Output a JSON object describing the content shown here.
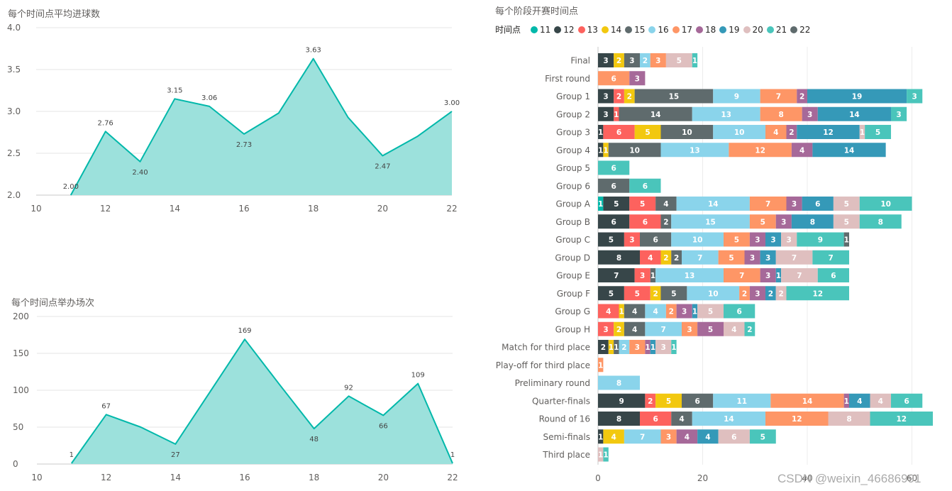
{
  "watermark": "CSDN @weixin_46686991",
  "chart_data": [
    {
      "id": "goals",
      "type": "area",
      "title": "每个时间点平均进球数",
      "x": [
        11,
        12,
        13,
        14,
        15,
        16,
        17,
        18,
        19,
        20,
        21,
        22
      ],
      "values": [
        2.0,
        2.76,
        2.4,
        3.15,
        3.06,
        2.73,
        2.98,
        3.63,
        2.93,
        2.47,
        2.7,
        3.0
      ],
      "data_labels": [
        {
          "x": 11,
          "text": "2.00"
        },
        {
          "x": 12,
          "text": "2.76"
        },
        {
          "x": 13,
          "text": "2.40"
        },
        {
          "x": 14,
          "text": "3.15"
        },
        {
          "x": 15,
          "text": "3.06"
        },
        {
          "x": 16,
          "text": "2.73"
        },
        {
          "x": 18,
          "text": "3.63"
        },
        {
          "x": 20,
          "text": "2.47"
        },
        {
          "x": 22,
          "text": "3.00"
        }
      ],
      "xticks": [
        "10",
        "12",
        "14",
        "16",
        "18",
        "20",
        "22"
      ],
      "yticks": [
        "2.0",
        "2.5",
        "3.0",
        "3.5",
        "4.0"
      ],
      "xlim": [
        10,
        22
      ],
      "ylim": [
        2.0,
        4.0
      ],
      "color": "#01B8AA",
      "fill": "#9CE1DC"
    },
    {
      "id": "matches",
      "type": "area",
      "title": "每个时间点举办场次",
      "x": [
        11,
        12,
        13,
        14,
        15,
        16,
        17,
        18,
        19,
        20,
        21,
        22
      ],
      "values": [
        1,
        67,
        50,
        27,
        98,
        169,
        108,
        48,
        92,
        66,
        109,
        1
      ],
      "data_labels": [
        {
          "x": 11,
          "text": "1"
        },
        {
          "x": 12,
          "text": "67"
        },
        {
          "x": 14,
          "text": "27"
        },
        {
          "x": 16,
          "text": "169"
        },
        {
          "x": 18,
          "text": "48"
        },
        {
          "x": 19,
          "text": "92"
        },
        {
          "x": 20,
          "text": "66"
        },
        {
          "x": 21,
          "text": "109"
        },
        {
          "x": 22,
          "text": "1"
        }
      ],
      "xticks": [
        "10",
        "12",
        "14",
        "16",
        "18",
        "20",
        "22"
      ],
      "yticks": [
        "0",
        "50",
        "100",
        "150",
        "200"
      ],
      "xlim": [
        10,
        22
      ],
      "ylim": [
        0,
        200
      ],
      "color": "#01B8AA",
      "fill": "#9CE1DC"
    },
    {
      "id": "stages",
      "type": "bar",
      "orientation": "horizontal",
      "stacked": true,
      "title": "每个阶段开赛时间点",
      "legend_title": "时间点",
      "legend": [
        {
          "name": "11",
          "color": "#01B8AA"
        },
        {
          "name": "12",
          "color": "#374649"
        },
        {
          "name": "13",
          "color": "#FD625E"
        },
        {
          "name": "14",
          "color": "#F2C80F"
        },
        {
          "name": "15",
          "color": "#5F6B6D"
        },
        {
          "name": "16",
          "color": "#8AD4EB"
        },
        {
          "name": "17",
          "color": "#FE9666"
        },
        {
          "name": "18",
          "color": "#A66999"
        },
        {
          "name": "19",
          "color": "#3599B8"
        },
        {
          "name": "20",
          "color": "#DFBFBF"
        },
        {
          "name": "21",
          "color": "#4AC5BB"
        },
        {
          "name": "22",
          "color": "#5F6B6D"
        }
      ],
      "categories": [
        "Final",
        "First round",
        "Group 1",
        "Group 2",
        "Group 3",
        "Group 4",
        "Group 5",
        "Group 6",
        "Group A",
        "Group B",
        "Group C",
        "Group D",
        "Group E",
        "Group F",
        "Group G",
        "Group H",
        "Match for third place",
        "Play-off for third place",
        "Preliminary round",
        "Quarter-finals",
        "Round of 16",
        "Semi-finals",
        "Third place"
      ],
      "series_order": [
        "11",
        "12",
        "13",
        "14",
        "15",
        "16",
        "17",
        "18",
        "19",
        "20",
        "21",
        "22"
      ],
      "rows": [
        {
          "12": 3,
          "14": 2,
          "15": 3,
          "16": 2,
          "17": 3,
          "20": 5,
          "21": 1
        },
        {
          "17": 6,
          "18": 3
        },
        {
          "12": 3,
          "13": 2,
          "14": 2,
          "15": 15,
          "16": 9,
          "17": 7,
          "18": 2,
          "19": 19,
          "21": 3
        },
        {
          "12": 3,
          "13": 1,
          "15": 14,
          "16": 13,
          "17": 8,
          "18": 3,
          "19": 14,
          "21": 3
        },
        {
          "12": 1,
          "13": 6,
          "14": 5,
          "15": 10,
          "16": 10,
          "17": 4,
          "18": 2,
          "19": 12,
          "20": 1,
          "21": 5
        },
        {
          "12": 1,
          "14": 1,
          "15": 10,
          "16": 13,
          "17": 12,
          "18": 4,
          "19": 14
        },
        {
          "21": 6
        },
        {
          "15": 6,
          "21": 6
        },
        {
          "11": 1,
          "12": 5,
          "13": 5,
          "15": 4,
          "16": 14,
          "17": 7,
          "18": 3,
          "19": 6,
          "20": 5,
          "21": 10
        },
        {
          "12": 6,
          "13": 6,
          "15": 2,
          "16": 15,
          "17": 5,
          "18": 3,
          "19": 8,
          "20": 5,
          "21": 8
        },
        {
          "12": 5,
          "13": 3,
          "15": 6,
          "16": 10,
          "17": 5,
          "18": 3,
          "19": 3,
          "20": 3,
          "21": 9,
          "22": 1
        },
        {
          "12": 8,
          "13": 4,
          "14": 2,
          "15": 2,
          "16": 7,
          "17": 5,
          "18": 3,
          "19": 3,
          "20": 7,
          "21": 7
        },
        {
          "12": 7,
          "13": 3,
          "15": 1,
          "16": 13,
          "17": 7,
          "18": 3,
          "19": 1,
          "20": 7,
          "21": 6
        },
        {
          "12": 5,
          "13": 5,
          "14": 2,
          "15": 5,
          "16": 10,
          "17": 2,
          "18": 3,
          "19": 2,
          "20": 2,
          "21": 12
        },
        {
          "13": 4,
          "14": 1,
          "15": 4,
          "16": 4,
          "17": 2,
          "18": 3,
          "19": 1,
          "20": 5,
          "21": 6
        },
        {
          "13": 3,
          "14": 2,
          "15": 4,
          "16": 7,
          "17": 3,
          "18": 5,
          "20": 4,
          "21": 2
        },
        {
          "12": 2,
          "14": 1,
          "15": 1,
          "16": 2,
          "17": 3,
          "18": 1,
          "19": 1,
          "20": 3,
          "21": 1
        },
        {
          "17": 1
        },
        {
          "16": 8
        },
        {
          "12": 9,
          "13": 2,
          "14": 5,
          "15": 6,
          "16": 11,
          "17": 14,
          "18": 1,
          "19": 4,
          "20": 4,
          "21": 6
        },
        {
          "12": 8,
          "13": 6,
          "15": 4,
          "16": 14,
          "17": 12,
          "20": 8,
          "21": 12
        },
        {
          "12": 1,
          "14": 4,
          "16": 7,
          "17": 3,
          "18": 4,
          "19": 4,
          "20": 6,
          "21": 5
        },
        {
          "20": 1,
          "21": 1
        }
      ],
      "xticks": [
        "0",
        "20",
        "40",
        "60"
      ],
      "xlim": [
        0,
        64
      ]
    }
  ]
}
